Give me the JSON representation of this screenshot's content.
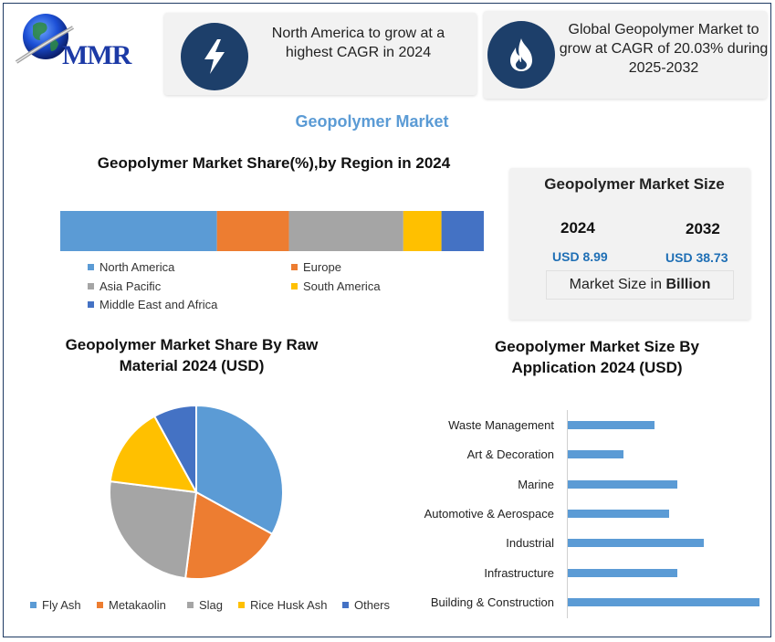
{
  "logo": {
    "text": "MMR"
  },
  "card1": {
    "icon": "lightning-bolt-icon",
    "text": "North America to grow at a highest CAGR in 2024"
  },
  "card2": {
    "icon": "flame-icon",
    "text": "Global Geopolymer Market to grow at CAGR of 20.03% during 2025-2032"
  },
  "main_title": "Geopolymer Market",
  "market_size": {
    "title": "Geopolymer Market Size",
    "year1": "2024",
    "value1": "USD 8.99",
    "year2": "2032",
    "value2": "USD 38.73",
    "unit_prefix": "Market Size in ",
    "unit_bold": "Billion"
  },
  "colors": {
    "blue_light": "#5b9bd5",
    "orange": "#ed7d31",
    "gray": "#a5a5a5",
    "yellow": "#ffc000",
    "blue_dark": "#4472c4",
    "navy": "#1d3f6a",
    "accent_value": "#1f6fb5"
  },
  "chart_data": [
    {
      "type": "bar",
      "orientation": "horizontal-stacked-100",
      "title": "Geopolymer Market Share(%),by Region in 2024",
      "series": [
        {
          "name": "North America",
          "value": 37,
          "color": "#5b9bd5"
        },
        {
          "name": "Europe",
          "value": 17,
          "color": "#ed7d31"
        },
        {
          "name": "Asia Pacific",
          "value": 27,
          "color": "#a5a5a5"
        },
        {
          "name": "South America",
          "value": 9,
          "color": "#ffc000"
        },
        {
          "name": "Middle East and Africa",
          "value": 10,
          "color": "#4472c4"
        }
      ],
      "legend": "bottom"
    },
    {
      "type": "pie",
      "title": "Geopolymer Market Share By Raw Material 2024  (USD)",
      "labels": [
        "Fly Ash",
        "Metakaolin",
        "Slag",
        "Rice Husk Ash",
        "Others"
      ],
      "values": [
        33,
        19,
        25,
        15,
        8
      ],
      "colors": [
        "#5b9bd5",
        "#ed7d31",
        "#a5a5a5",
        "#ffc000",
        "#4472c4"
      ],
      "legend": "bottom"
    },
    {
      "type": "bar",
      "orientation": "horizontal",
      "title": "Geopolymer Market Size By Application 2024  (USD)",
      "categories": [
        "Waste Management",
        "Art & Decoration",
        "Marine",
        "Automotive & Aerospace",
        "Industrial",
        "Infrastructure",
        "Building & Construction"
      ],
      "values": [
        45,
        29,
        57,
        53,
        71,
        57,
        100
      ],
      "xlim": [
        0,
        100
      ],
      "grid": false
    }
  ]
}
